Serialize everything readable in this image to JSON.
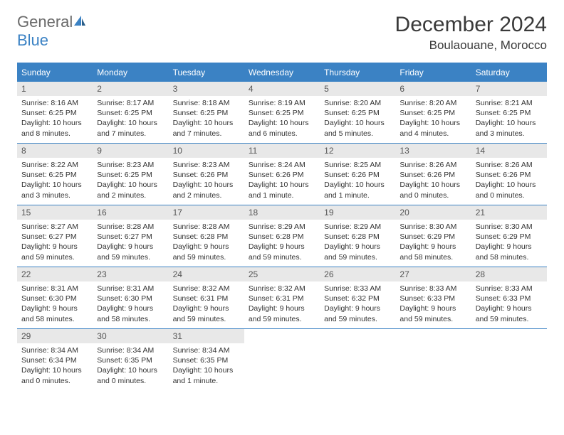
{
  "brand": {
    "word1": "General",
    "word2": "Blue"
  },
  "title": "December 2024",
  "location": "Boulaouane, Morocco",
  "colors": {
    "accent": "#3b82c4",
    "header_bg": "#e8e8e8",
    "text": "#333333",
    "logo_gray": "#6a6a6a"
  },
  "dow": [
    "Sunday",
    "Monday",
    "Tuesday",
    "Wednesday",
    "Thursday",
    "Friday",
    "Saturday"
  ],
  "weeks": [
    [
      {
        "n": "1",
        "sr": "Sunrise: 8:16 AM",
        "ss": "Sunset: 6:25 PM",
        "dl": "Daylight: 10 hours and 8 minutes."
      },
      {
        "n": "2",
        "sr": "Sunrise: 8:17 AM",
        "ss": "Sunset: 6:25 PM",
        "dl": "Daylight: 10 hours and 7 minutes."
      },
      {
        "n": "3",
        "sr": "Sunrise: 8:18 AM",
        "ss": "Sunset: 6:25 PM",
        "dl": "Daylight: 10 hours and 7 minutes."
      },
      {
        "n": "4",
        "sr": "Sunrise: 8:19 AM",
        "ss": "Sunset: 6:25 PM",
        "dl": "Daylight: 10 hours and 6 minutes."
      },
      {
        "n": "5",
        "sr": "Sunrise: 8:20 AM",
        "ss": "Sunset: 6:25 PM",
        "dl": "Daylight: 10 hours and 5 minutes."
      },
      {
        "n": "6",
        "sr": "Sunrise: 8:20 AM",
        "ss": "Sunset: 6:25 PM",
        "dl": "Daylight: 10 hours and 4 minutes."
      },
      {
        "n": "7",
        "sr": "Sunrise: 8:21 AM",
        "ss": "Sunset: 6:25 PM",
        "dl": "Daylight: 10 hours and 3 minutes."
      }
    ],
    [
      {
        "n": "8",
        "sr": "Sunrise: 8:22 AM",
        "ss": "Sunset: 6:25 PM",
        "dl": "Daylight: 10 hours and 3 minutes."
      },
      {
        "n": "9",
        "sr": "Sunrise: 8:23 AM",
        "ss": "Sunset: 6:25 PM",
        "dl": "Daylight: 10 hours and 2 minutes."
      },
      {
        "n": "10",
        "sr": "Sunrise: 8:23 AM",
        "ss": "Sunset: 6:26 PM",
        "dl": "Daylight: 10 hours and 2 minutes."
      },
      {
        "n": "11",
        "sr": "Sunrise: 8:24 AM",
        "ss": "Sunset: 6:26 PM",
        "dl": "Daylight: 10 hours and 1 minute."
      },
      {
        "n": "12",
        "sr": "Sunrise: 8:25 AM",
        "ss": "Sunset: 6:26 PM",
        "dl": "Daylight: 10 hours and 1 minute."
      },
      {
        "n": "13",
        "sr": "Sunrise: 8:26 AM",
        "ss": "Sunset: 6:26 PM",
        "dl": "Daylight: 10 hours and 0 minutes."
      },
      {
        "n": "14",
        "sr": "Sunrise: 8:26 AM",
        "ss": "Sunset: 6:26 PM",
        "dl": "Daylight: 10 hours and 0 minutes."
      }
    ],
    [
      {
        "n": "15",
        "sr": "Sunrise: 8:27 AM",
        "ss": "Sunset: 6:27 PM",
        "dl": "Daylight: 9 hours and 59 minutes."
      },
      {
        "n": "16",
        "sr": "Sunrise: 8:28 AM",
        "ss": "Sunset: 6:27 PM",
        "dl": "Daylight: 9 hours and 59 minutes."
      },
      {
        "n": "17",
        "sr": "Sunrise: 8:28 AM",
        "ss": "Sunset: 6:28 PM",
        "dl": "Daylight: 9 hours and 59 minutes."
      },
      {
        "n": "18",
        "sr": "Sunrise: 8:29 AM",
        "ss": "Sunset: 6:28 PM",
        "dl": "Daylight: 9 hours and 59 minutes."
      },
      {
        "n": "19",
        "sr": "Sunrise: 8:29 AM",
        "ss": "Sunset: 6:28 PM",
        "dl": "Daylight: 9 hours and 59 minutes."
      },
      {
        "n": "20",
        "sr": "Sunrise: 8:30 AM",
        "ss": "Sunset: 6:29 PM",
        "dl": "Daylight: 9 hours and 58 minutes."
      },
      {
        "n": "21",
        "sr": "Sunrise: 8:30 AM",
        "ss": "Sunset: 6:29 PM",
        "dl": "Daylight: 9 hours and 58 minutes."
      }
    ],
    [
      {
        "n": "22",
        "sr": "Sunrise: 8:31 AM",
        "ss": "Sunset: 6:30 PM",
        "dl": "Daylight: 9 hours and 58 minutes."
      },
      {
        "n": "23",
        "sr": "Sunrise: 8:31 AM",
        "ss": "Sunset: 6:30 PM",
        "dl": "Daylight: 9 hours and 58 minutes."
      },
      {
        "n": "24",
        "sr": "Sunrise: 8:32 AM",
        "ss": "Sunset: 6:31 PM",
        "dl": "Daylight: 9 hours and 59 minutes."
      },
      {
        "n": "25",
        "sr": "Sunrise: 8:32 AM",
        "ss": "Sunset: 6:31 PM",
        "dl": "Daylight: 9 hours and 59 minutes."
      },
      {
        "n": "26",
        "sr": "Sunrise: 8:33 AM",
        "ss": "Sunset: 6:32 PM",
        "dl": "Daylight: 9 hours and 59 minutes."
      },
      {
        "n": "27",
        "sr": "Sunrise: 8:33 AM",
        "ss": "Sunset: 6:33 PM",
        "dl": "Daylight: 9 hours and 59 minutes."
      },
      {
        "n": "28",
        "sr": "Sunrise: 8:33 AM",
        "ss": "Sunset: 6:33 PM",
        "dl": "Daylight: 9 hours and 59 minutes."
      }
    ],
    [
      {
        "n": "29",
        "sr": "Sunrise: 8:34 AM",
        "ss": "Sunset: 6:34 PM",
        "dl": "Daylight: 10 hours and 0 minutes."
      },
      {
        "n": "30",
        "sr": "Sunrise: 8:34 AM",
        "ss": "Sunset: 6:35 PM",
        "dl": "Daylight: 10 hours and 0 minutes."
      },
      {
        "n": "31",
        "sr": "Sunrise: 8:34 AM",
        "ss": "Sunset: 6:35 PM",
        "dl": "Daylight: 10 hours and 1 minute."
      },
      null,
      null,
      null,
      null
    ]
  ]
}
